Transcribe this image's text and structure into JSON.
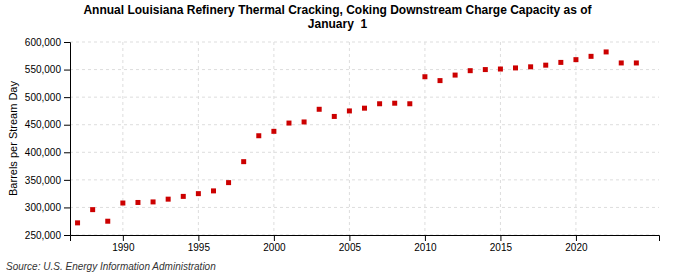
{
  "chart_data": {
    "type": "scatter",
    "title": "Annual Louisiana Refinery Thermal Cracking, Coking Downstream Charge Capacity as of\nJanuary  1",
    "ylabel": "Barrels per Stream Day",
    "annotations": [
      "Source: U.S. Energy Information Administration"
    ],
    "x": [
      1987,
      1988,
      1989,
      1990,
      1991,
      1992,
      1993,
      1994,
      1995,
      1996,
      1997,
      1998,
      1999,
      2000,
      2001,
      2002,
      2003,
      2004,
      2005,
      2006,
      2007,
      2008,
      2009,
      2010,
      2011,
      2012,
      2013,
      2014,
      2015,
      2016,
      2017,
      2018,
      2019,
      2020,
      2021,
      2022,
      2023,
      2024
    ],
    "values": [
      272000,
      296000,
      275000,
      308000,
      309000,
      310000,
      315000,
      320000,
      325000,
      330000,
      345000,
      383000,
      430000,
      438000,
      453000,
      455000,
      478000,
      465000,
      475000,
      480000,
      488000,
      489000,
      488000,
      537000,
      530000,
      540000,
      548000,
      550000,
      551000,
      553000,
      555000,
      558000,
      563000,
      568000,
      574000,
      582000,
      562000,
      562000
    ],
    "color": "#cc0000",
    "marker": "square",
    "xlim": [
      1986.5,
      2025.5
    ],
    "xticks": [
      1990,
      1995,
      2000,
      2005,
      2010,
      2015,
      2020
    ],
    "ylim": [
      250000,
      600000
    ],
    "yticks": [
      {
        "value": 250000,
        "label": "250,000"
      },
      {
        "value": 300000,
        "label": "300,000"
      },
      {
        "value": 350000,
        "label": "350,000"
      },
      {
        "value": 400000,
        "label": "400,000"
      },
      {
        "value": 450000,
        "label": "450,000"
      },
      {
        "value": 500000,
        "label": "500,000"
      },
      {
        "value": 550000,
        "label": "550,000"
      },
      {
        "value": 600000,
        "label": "600,000"
      }
    ],
    "grid": true
  }
}
